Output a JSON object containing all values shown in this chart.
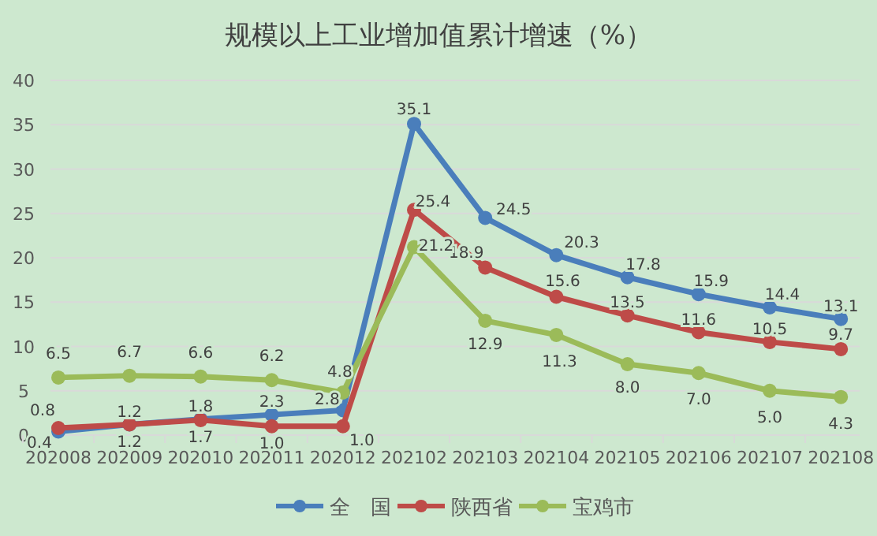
{
  "chart_data": {
    "type": "line",
    "title": "规模以上工业增加值累计增速（%）",
    "categories": [
      "202008",
      "202009",
      "202010",
      "202011",
      "202012",
      "202102",
      "202103",
      "202104",
      "202105",
      "202106",
      "202107",
      "202108"
    ],
    "series": [
      {
        "name": "全　国",
        "color": "#4a7ebb",
        "values": [
          0.4,
          1.2,
          1.8,
          2.3,
          2.8,
          35.1,
          24.5,
          20.3,
          17.8,
          15.9,
          14.4,
          13.1
        ],
        "value_labels": [
          "0.4",
          "1.2",
          "1.8",
          "2.3",
          "2.8",
          "35.1",
          "24.5",
          "20.3",
          "17.8",
          "15.9",
          "14.4",
          "13.1"
        ]
      },
      {
        "name": "陕西省",
        "color": "#be4b48",
        "values": [
          0.8,
          1.2,
          1.7,
          1.0,
          1.0,
          25.4,
          18.9,
          15.6,
          13.5,
          11.6,
          10.5,
          9.7
        ],
        "value_labels": [
          "0.8",
          "1.2",
          "1.7",
          "1.0",
          "1.0",
          "25.4",
          "18.9",
          "15.6",
          "13.5",
          "11.6",
          "10.5",
          "9.7"
        ]
      },
      {
        "name": "宝鸡市",
        "color": "#9bbb59",
        "values": [
          6.5,
          6.7,
          6.6,
          6.2,
          4.8,
          21.2,
          12.9,
          11.3,
          8.0,
          7.0,
          5.0,
          4.3
        ],
        "value_labels": [
          "6.5",
          "6.7",
          "6.6",
          "6.2",
          "4.8",
          "21.2",
          "12.9",
          "11.3",
          "8.0",
          "7.0",
          "5.0",
          "4.3"
        ]
      }
    ],
    "ylim": [
      0,
      40
    ],
    "yticks": [
      0,
      5,
      10,
      15,
      20,
      25,
      30,
      35,
      40
    ],
    "grid": "y",
    "legend": "bottom",
    "marker": "circle",
    "line_style": "solid"
  }
}
